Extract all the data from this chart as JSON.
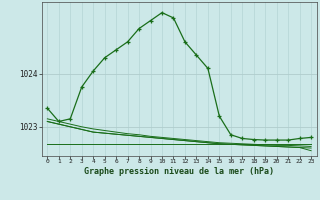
{
  "title": "Graphe pression niveau de la mer (hPa)",
  "background_color": "#cce8e8",
  "grid_color_v": "#b8d8d8",
  "grid_color_h": "#b0cccc",
  "line_color": "#1a6e1a",
  "x_labels": [
    "0",
    "1",
    "2",
    "3",
    "4",
    "5",
    "6",
    "7",
    "8",
    "9",
    "10",
    "11",
    "12",
    "13",
    "14",
    "15",
    "16",
    "17",
    "18",
    "19",
    "20",
    "21",
    "22",
    "23"
  ],
  "yticks": [
    1023,
    1024
  ],
  "ylim": [
    1022.45,
    1025.35
  ],
  "xlim": [
    -0.5,
    23.5
  ],
  "series": [
    [
      1023.35,
      1023.1,
      1023.15,
      1023.75,
      1024.05,
      1024.3,
      1024.45,
      1024.6,
      1024.85,
      1025.0,
      1025.15,
      1025.05,
      1024.6,
      1024.35,
      1024.1,
      1023.2,
      1022.85,
      1022.78,
      1022.76,
      1022.75,
      1022.75,
      1022.75,
      1022.78,
      1022.8
    ],
    [
      1022.68,
      1022.68,
      1022.68,
      1022.68,
      1022.68,
      1022.68,
      1022.68,
      1022.68,
      1022.68,
      1022.68,
      1022.68,
      1022.68,
      1022.68,
      1022.68,
      1022.68,
      1022.68,
      1022.68,
      1022.68,
      1022.68,
      1022.68,
      1022.68,
      1022.68,
      1022.68,
      1022.68
    ],
    [
      1023.1,
      1023.05,
      1023.0,
      1022.95,
      1022.9,
      1022.88,
      1022.86,
      1022.84,
      1022.82,
      1022.8,
      1022.78,
      1022.76,
      1022.74,
      1022.72,
      1022.7,
      1022.68,
      1022.67,
      1022.66,
      1022.65,
      1022.64,
      1022.63,
      1022.62,
      1022.61,
      1022.6
    ],
    [
      1023.1,
      1023.05,
      1023.0,
      1022.95,
      1022.9,
      1022.88,
      1022.86,
      1022.84,
      1022.82,
      1022.8,
      1022.78,
      1022.76,
      1022.74,
      1022.72,
      1022.7,
      1022.68,
      1022.67,
      1022.66,
      1022.65,
      1022.64,
      1022.63,
      1022.62,
      1022.61,
      1022.55
    ],
    [
      1023.15,
      1023.1,
      1023.05,
      1023.0,
      1022.96,
      1022.93,
      1022.9,
      1022.87,
      1022.85,
      1022.82,
      1022.8,
      1022.78,
      1022.76,
      1022.74,
      1022.72,
      1022.7,
      1022.69,
      1022.68,
      1022.67,
      1022.66,
      1022.65,
      1022.65,
      1022.64,
      1022.63
    ]
  ],
  "series_has_markers": [
    true,
    false,
    false,
    false,
    false
  ],
  "marker": "+"
}
